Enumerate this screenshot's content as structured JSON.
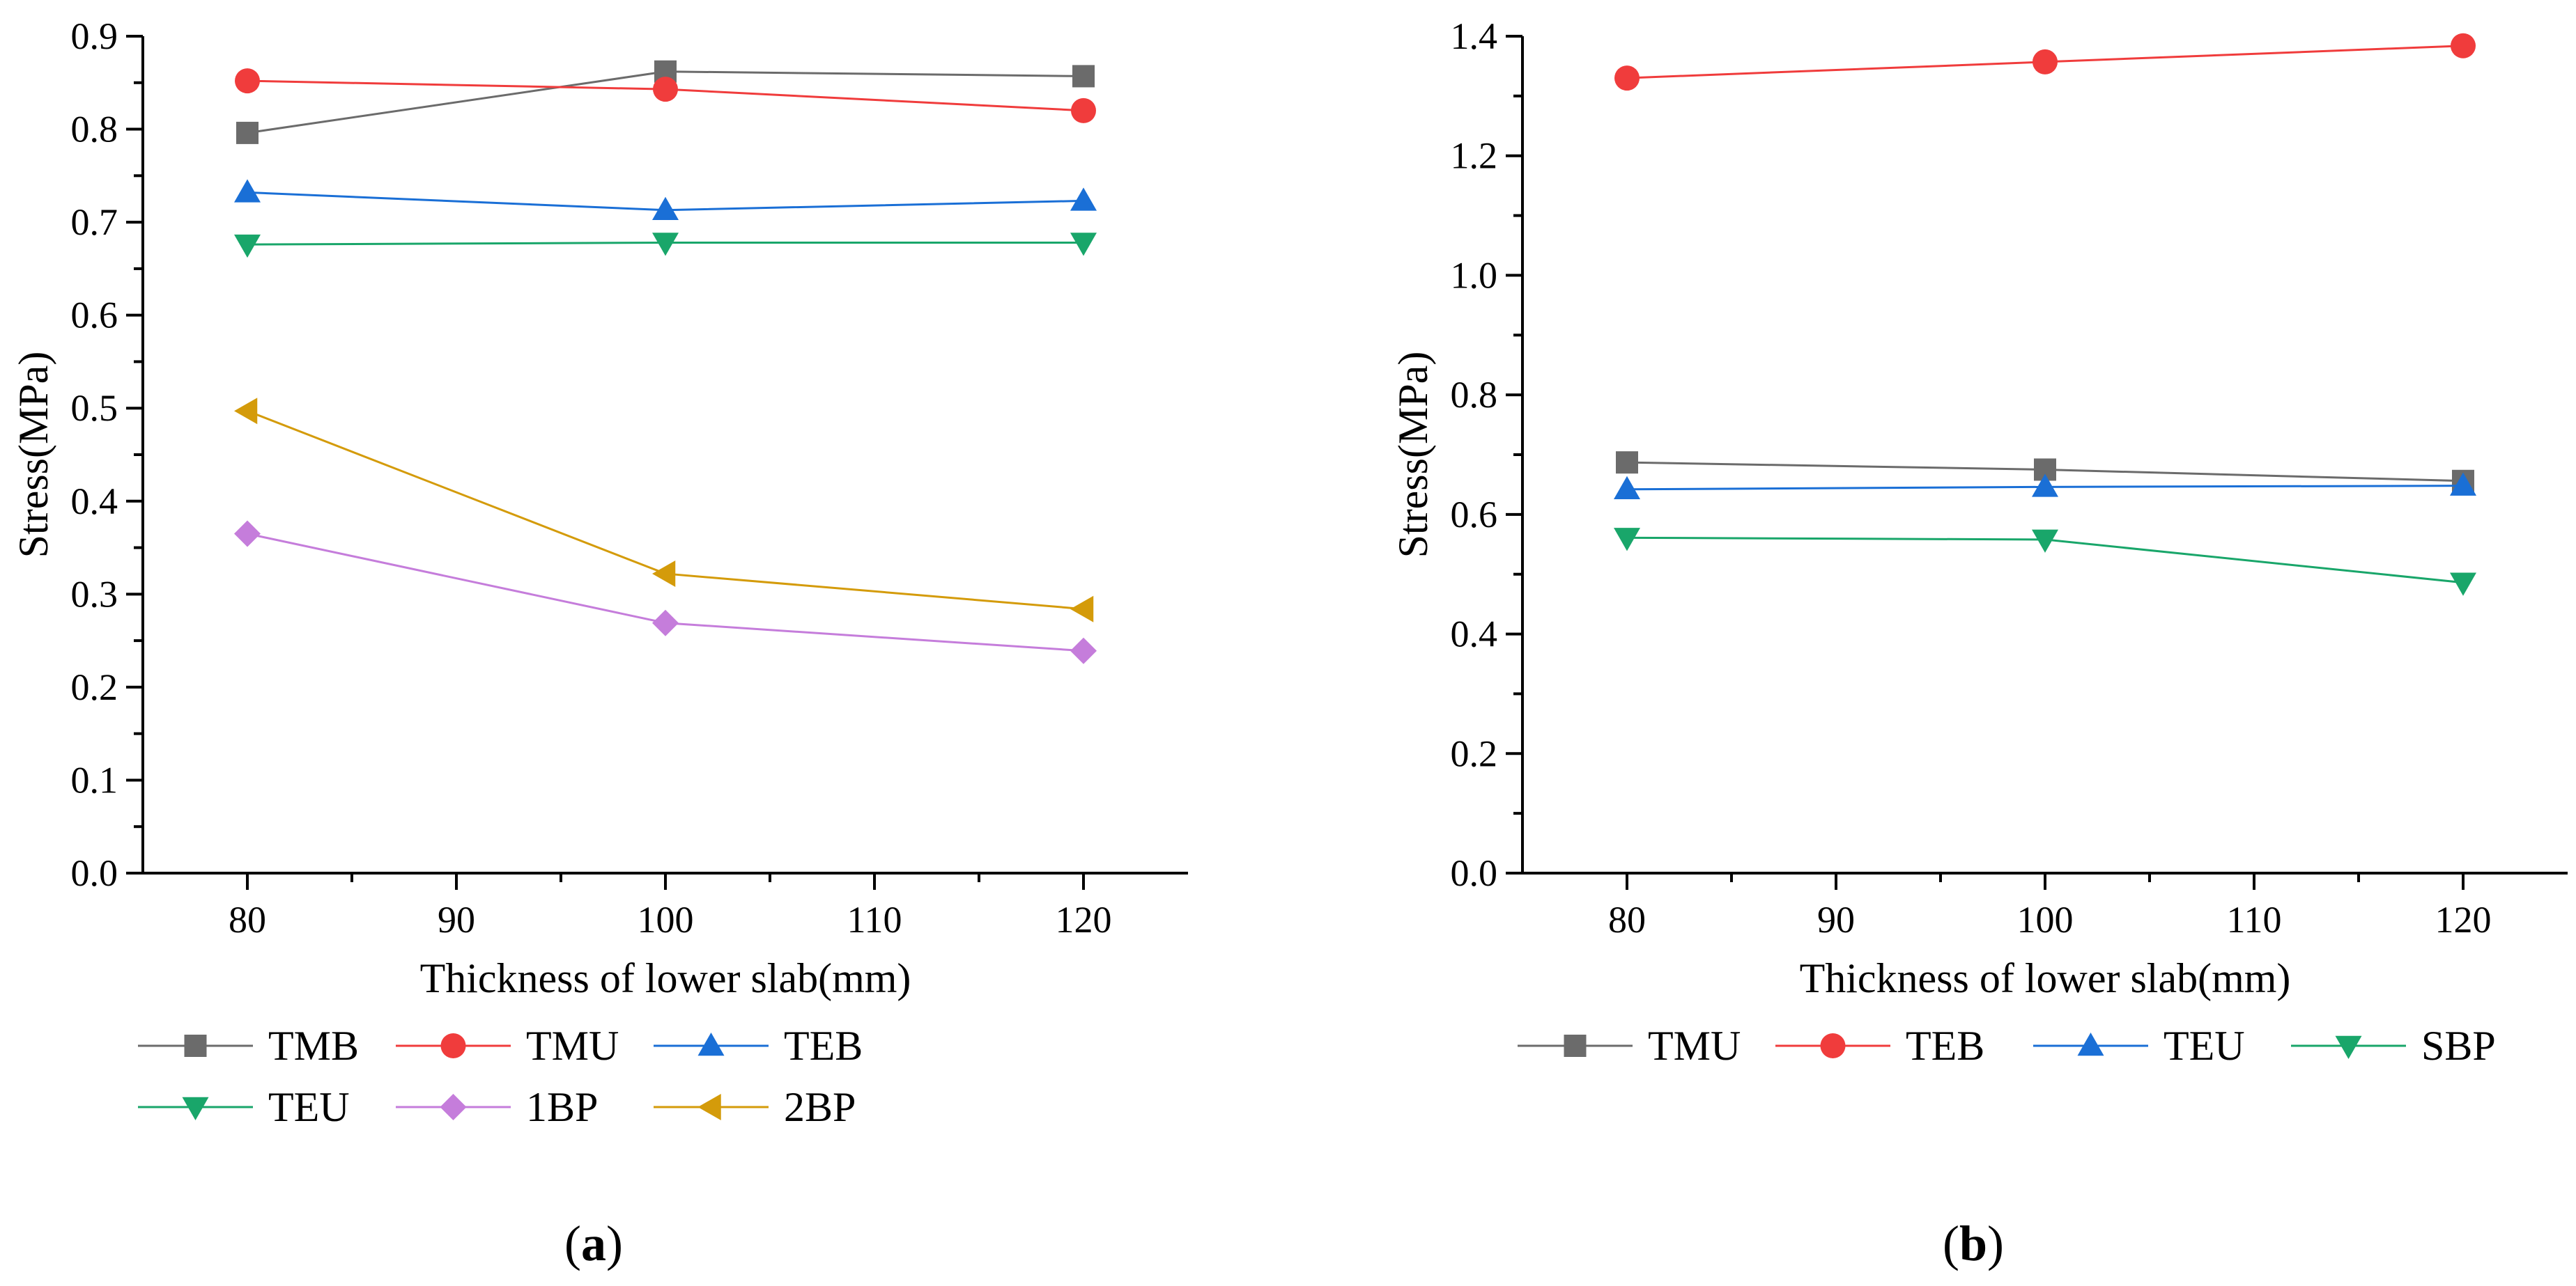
{
  "chart_data": [
    {
      "type": "line",
      "panel": "a",
      "title": "",
      "xlabel": "Thickness of lower slab(mm)",
      "ylabel": "Stress(MPa)",
      "xlim": [
        75,
        125
      ],
      "ylim": [
        0,
        0.9
      ],
      "xticks": [
        80,
        90,
        100,
        110,
        120
      ],
      "xtick_labels": [
        "80",
        "90",
        "100",
        "110",
        "120"
      ],
      "yticks": [
        0,
        0.1,
        0.2,
        0.3,
        0.4,
        0.5,
        0.6,
        0.7,
        0.8,
        0.9
      ],
      "ytick_labels": [
        "0.0",
        "0.1",
        "0.2",
        "0.3",
        "0.4",
        "0.5",
        "0.6",
        "0.7",
        "0.8",
        "0.9"
      ],
      "x": [
        80,
        100,
        120
      ],
      "legend_position": "bottom",
      "grid": false,
      "series": [
        {
          "name": "TMB",
          "values": [
            0.796,
            0.862,
            0.857
          ],
          "color": "#6b6b6b",
          "marker": "square"
        },
        {
          "name": "TMU",
          "values": [
            0.852,
            0.843,
            0.82
          ],
          "color": "#f03c3c",
          "marker": "circle"
        },
        {
          "name": "TEB",
          "values": [
            0.732,
            0.713,
            0.723
          ],
          "color": "#1a6fd6",
          "marker": "triangle-up"
        },
        {
          "name": "TEU",
          "values": [
            0.676,
            0.678,
            0.678
          ],
          "color": "#19a66a",
          "marker": "triangle-down"
        },
        {
          "name": "1BP",
          "values": [
            0.365,
            0.269,
            0.239
          ],
          "color": "#c57ddb",
          "marker": "diamond"
        },
        {
          "name": "2BP",
          "values": [
            0.497,
            0.322,
            0.284
          ],
          "color": "#d49b0a",
          "marker": "triangle-left"
        }
      ]
    },
    {
      "type": "line",
      "panel": "b",
      "title": "",
      "xlabel": "Thickness of lower slab(mm)",
      "ylabel": "Stress(MPa)",
      "xlim": [
        75,
        125
      ],
      "ylim": [
        0,
        1.4
      ],
      "xticks": [
        80,
        90,
        100,
        110,
        120
      ],
      "xtick_labels": [
        "80",
        "90",
        "100",
        "110",
        "120"
      ],
      "yticks": [
        0,
        0.2,
        0.4,
        0.6,
        0.8,
        1.0,
        1.2,
        1.4
      ],
      "ytick_labels": [
        "0.0",
        "0.2",
        "0.4",
        "0.6",
        "0.8",
        "1.0",
        "1.2",
        "1.4"
      ],
      "x": [
        80,
        100,
        120
      ],
      "legend_position": "bottom",
      "grid": false,
      "series": [
        {
          "name": "TMU",
          "values": [
            0.687,
            0.675,
            0.656
          ],
          "color": "#6b6b6b",
          "marker": "square"
        },
        {
          "name": "TEB",
          "values": [
            1.33,
            1.357,
            1.384
          ],
          "color": "#f03c3c",
          "marker": "circle"
        },
        {
          "name": "TEU",
          "values": [
            0.642,
            0.646,
            0.648
          ],
          "color": "#1a6fd6",
          "marker": "triangle-up"
        },
        {
          "name": "SBP",
          "values": [
            0.561,
            0.558,
            0.486
          ],
          "color": "#19a66a",
          "marker": "triangle-down"
        }
      ]
    }
  ],
  "captions": {
    "a": {
      "open": "(",
      "letter": "a",
      "close": ")"
    },
    "b": {
      "open": "(",
      "letter": "b",
      "close": ")"
    }
  }
}
